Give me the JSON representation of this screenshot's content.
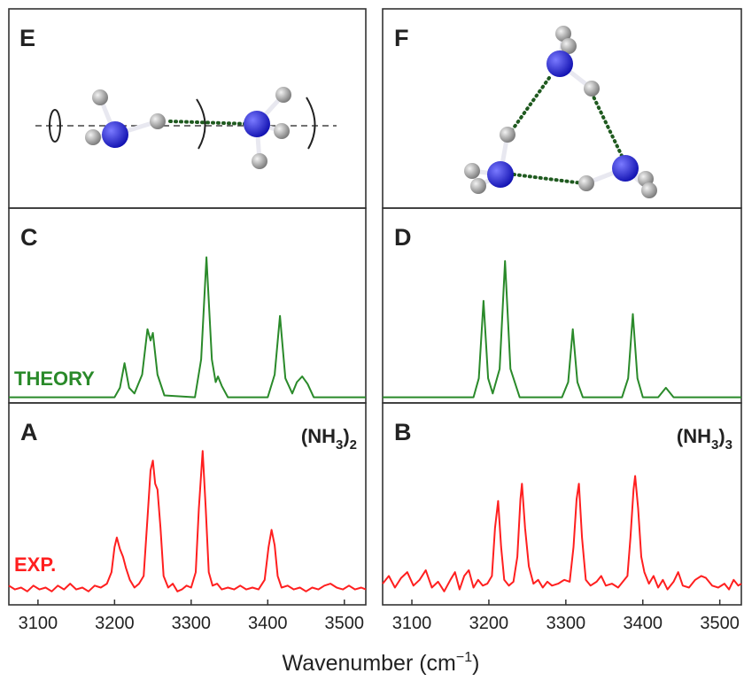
{
  "axis": {
    "xlim": [
      3062,
      3528
    ],
    "xticks": [
      3100,
      3200,
      3300,
      3400,
      3500
    ],
    "label_parts": [
      "Wavenumber (cm",
      "−1",
      ")"
    ]
  },
  "diagrams": [
    {
      "label": "E"
    },
    {
      "label": "F"
    }
  ],
  "chart_data": [
    {
      "type": "line",
      "label": "C",
      "annotation": "THEORY",
      "color": "#2a8a2a",
      "ylim": [
        -0.03,
        1
      ],
      "x": [
        3062,
        3200,
        3207,
        3213,
        3219,
        3226,
        3236,
        3243,
        3247,
        3250,
        3256,
        3265,
        3305,
        3313,
        3320,
        3327,
        3332,
        3335,
        3340,
        3348,
        3400,
        3409,
        3416,
        3423,
        3432,
        3438,
        3445,
        3452,
        3460,
        3528
      ],
      "values": [
        0,
        0,
        0.05,
        0.18,
        0.05,
        0.02,
        0.12,
        0.36,
        0.3,
        0.34,
        0.12,
        0.01,
        0,
        0.2,
        0.74,
        0.2,
        0.08,
        0.11,
        0.06,
        0,
        0,
        0.12,
        0.43,
        0.1,
        0.02,
        0.08,
        0.11,
        0.07,
        0,
        0
      ]
    },
    {
      "type": "line",
      "label": "D",
      "color": "#2a8a2a",
      "ylim": [
        -0.03,
        1
      ],
      "x": [
        3062,
        3180,
        3187,
        3193,
        3199,
        3205,
        3214,
        3221,
        3228,
        3240,
        3295,
        3303,
        3309,
        3315,
        3322,
        3373,
        3381,
        3387,
        3393,
        3400,
        3420,
        3430,
        3440,
        3528
      ],
      "values": [
        0,
        0,
        0.1,
        0.51,
        0.1,
        0.02,
        0.15,
        0.72,
        0.15,
        0,
        0,
        0.08,
        0.36,
        0.08,
        0,
        0,
        0.1,
        0.44,
        0.1,
        0,
        0,
        0.05,
        0,
        0
      ]
    },
    {
      "type": "line",
      "label": "A",
      "annotation": "EXP.",
      "formula_parts": [
        "(NH",
        "3",
        ")",
        "2"
      ],
      "color": "#ff1f1f",
      "ylim": [
        -0.05,
        1
      ],
      "x": [
        3062,
        3070,
        3078,
        3086,
        3094,
        3102,
        3110,
        3118,
        3126,
        3134,
        3142,
        3150,
        3158,
        3166,
        3174,
        3182,
        3190,
        3196,
        3200,
        3203,
        3207,
        3211,
        3215,
        3220,
        3226,
        3232,
        3238,
        3243,
        3247,
        3250,
        3253,
        3256,
        3260,
        3264,
        3270,
        3276,
        3282,
        3288,
        3294,
        3300,
        3306,
        3310,
        3315,
        3319,
        3323,
        3328,
        3334,
        3340,
        3348,
        3356,
        3364,
        3372,
        3380,
        3388,
        3396,
        3401,
        3405,
        3409,
        3413,
        3418,
        3426,
        3434,
        3442,
        3450,
        3458,
        3466,
        3474,
        3482,
        3490,
        3498,
        3506,
        3514,
        3522,
        3528
      ],
      "values": [
        0.05,
        0.03,
        0.04,
        0.02,
        0.05,
        0.03,
        0.04,
        0.02,
        0.05,
        0.03,
        0.06,
        0.03,
        0.04,
        0.02,
        0.05,
        0.04,
        0.06,
        0.12,
        0.25,
        0.3,
        0.24,
        0.2,
        0.14,
        0.08,
        0.04,
        0.06,
        0.1,
        0.4,
        0.65,
        0.7,
        0.58,
        0.55,
        0.35,
        0.1,
        0.04,
        0.06,
        0.02,
        0.03,
        0.05,
        0.04,
        0.12,
        0.45,
        0.75,
        0.45,
        0.12,
        0.05,
        0.06,
        0.03,
        0.04,
        0.03,
        0.05,
        0.03,
        0.04,
        0.03,
        0.08,
        0.25,
        0.34,
        0.26,
        0.1,
        0.04,
        0.05,
        0.03,
        0.04,
        0.02,
        0.04,
        0.03,
        0.05,
        0.06,
        0.04,
        0.03,
        0.05,
        0.03,
        0.04,
        0.03
      ]
    },
    {
      "type": "line",
      "label": "B",
      "formula_parts": [
        "(NH",
        "3",
        ")",
        "3"
      ],
      "color": "#ff1f1f",
      "ylim": [
        -0.05,
        1
      ],
      "x": [
        3062,
        3070,
        3078,
        3086,
        3094,
        3102,
        3110,
        3118,
        3126,
        3134,
        3142,
        3150,
        3156,
        3162,
        3168,
        3174,
        3180,
        3186,
        3192,
        3198,
        3204,
        3208,
        3212,
        3216,
        3220,
        3226,
        3232,
        3237,
        3241,
        3243,
        3247,
        3252,
        3258,
        3264,
        3270,
        3276,
        3282,
        3290,
        3298,
        3305,
        3310,
        3314,
        3317,
        3321,
        3326,
        3332,
        3340,
        3346,
        3352,
        3360,
        3368,
        3374,
        3380,
        3384,
        3388,
        3390,
        3394,
        3398,
        3402,
        3408,
        3414,
        3420,
        3426,
        3432,
        3440,
        3446,
        3452,
        3460,
        3468,
        3476,
        3482,
        3490,
        3498,
        3506,
        3512,
        3518,
        3524,
        3528
      ],
      "values": [
        0.06,
        0.1,
        0.04,
        0.09,
        0.12,
        0.05,
        0.08,
        0.13,
        0.04,
        0.07,
        0.02,
        0.08,
        0.12,
        0.03,
        0.1,
        0.13,
        0.04,
        0.08,
        0.05,
        0.06,
        0.1,
        0.35,
        0.49,
        0.25,
        0.08,
        0.05,
        0.07,
        0.2,
        0.5,
        0.58,
        0.35,
        0.15,
        0.06,
        0.08,
        0.04,
        0.07,
        0.05,
        0.06,
        0.08,
        0.07,
        0.25,
        0.5,
        0.58,
        0.3,
        0.08,
        0.05,
        0.07,
        0.1,
        0.05,
        0.06,
        0.04,
        0.07,
        0.1,
        0.3,
        0.55,
        0.62,
        0.45,
        0.2,
        0.12,
        0.06,
        0.1,
        0.04,
        0.08,
        0.03,
        0.07,
        0.12,
        0.05,
        0.04,
        0.08,
        0.1,
        0.09,
        0.05,
        0.04,
        0.06,
        0.03,
        0.08,
        0.05,
        0.06
      ]
    }
  ]
}
